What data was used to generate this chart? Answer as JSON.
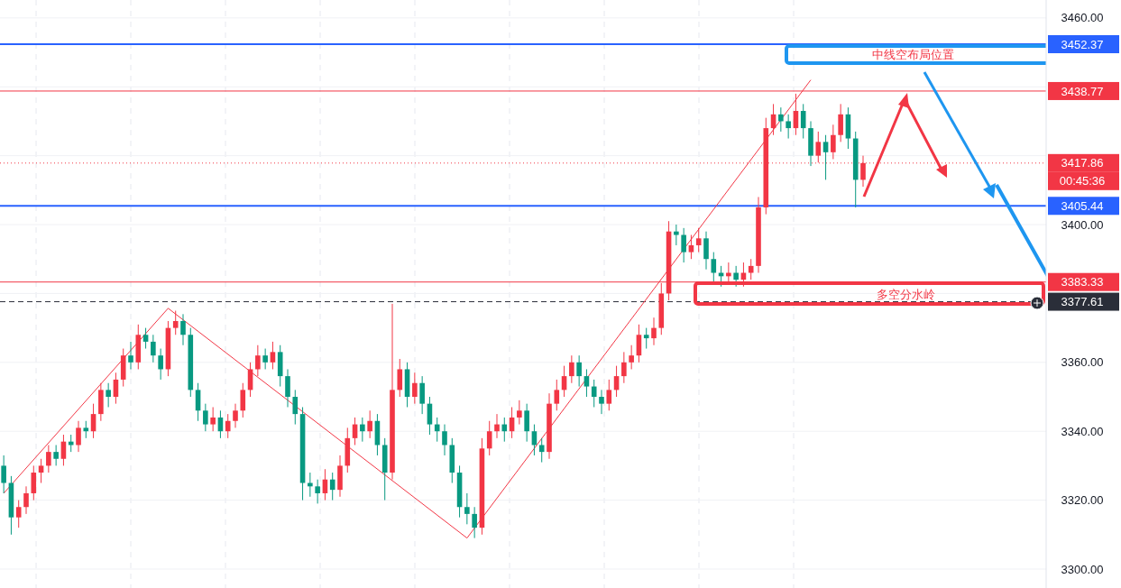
{
  "chart_data": {
    "type": "candlestick",
    "categories": [
      null,
      null,
      null,
      null,
      null,
      null,
      null,
      null,
      null,
      null,
      null,
      null,
      null,
      null,
      null,
      null,
      null,
      null,
      null,
      null,
      null,
      null,
      null,
      null,
      null,
      null,
      null,
      null,
      null,
      null,
      null,
      null,
      null,
      null,
      null,
      null,
      null,
      null,
      null,
      null,
      null,
      null,
      null,
      null,
      null,
      null,
      null,
      null,
      null,
      null,
      null,
      null,
      null,
      null,
      null,
      null,
      null,
      null,
      null,
      null,
      null,
      null,
      null,
      null,
      null,
      null,
      null,
      null,
      null,
      null,
      null,
      null,
      null,
      null,
      null,
      null,
      null,
      null,
      null,
      null,
      null,
      null,
      null,
      null,
      null,
      null,
      null,
      null,
      null,
      null,
      null,
      null,
      null,
      null,
      null,
      null,
      null,
      null,
      null,
      null,
      null,
      null,
      null,
      null,
      null,
      null,
      null,
      null,
      null,
      null,
      null,
      null,
      null,
      null,
      null,
      null,
      null,
      null,
      null,
      null,
      null,
      null,
      null,
      null,
      null,
      null,
      null,
      null,
      null,
      null,
      null,
      null,
      null,
      null,
      null,
      null,
      null,
      null,
      null,
      null
    ],
    "ohlc": [
      [
        3330,
        3333,
        3322,
        3325
      ],
      [
        3325,
        3327,
        3310,
        3315
      ],
      [
        3315,
        3320,
        3312,
        3318
      ],
      [
        3318,
        3324,
        3316,
        3322
      ],
      [
        3322,
        3330,
        3320,
        3328
      ],
      [
        3328,
        3332,
        3325,
        3330
      ],
      [
        3330,
        3336,
        3328,
        3334
      ],
      [
        3334,
        3336,
        3330,
        3332
      ],
      [
        3332,
        3339,
        3330,
        3337
      ],
      [
        3337,
        3339,
        3334,
        3336
      ],
      [
        3336,
        3343,
        3334,
        3341
      ],
      [
        3341,
        3343,
        3338,
        3340
      ],
      [
        3340,
        3348,
        3338,
        3345
      ],
      [
        3345,
        3354,
        3343,
        3352
      ],
      [
        3352,
        3354,
        3347,
        3350
      ],
      [
        3350,
        3357,
        3348,
        3355
      ],
      [
        3355,
        3364,
        3353,
        3362
      ],
      [
        3362,
        3366,
        3358,
        3360
      ],
      [
        3360,
        3371,
        3358,
        3368
      ],
      [
        3368,
        3370,
        3364,
        3366
      ],
      [
        3366,
        3368,
        3360,
        3362
      ],
      [
        3362,
        3364,
        3355,
        3358
      ],
      [
        3358,
        3372,
        3356,
        3370
      ],
      [
        3370,
        3375,
        3368,
        3372
      ],
      [
        3372,
        3374,
        3365,
        3368
      ],
      [
        3368,
        3370,
        3350,
        3352
      ],
      [
        3352,
        3354,
        3343,
        3346
      ],
      [
        3346,
        3348,
        3340,
        3342
      ],
      [
        3342,
        3347,
        3340,
        3344
      ],
      [
        3344,
        3346,
        3338,
        3340
      ],
      [
        3340,
        3345,
        3338,
        3343
      ],
      [
        3343,
        3348,
        3341,
        3346
      ],
      [
        3346,
        3354,
        3344,
        3352
      ],
      [
        3352,
        3360,
        3350,
        3358
      ],
      [
        3358,
        3365,
        3356,
        3362
      ],
      [
        3362,
        3364,
        3358,
        3360
      ],
      [
        3360,
        3366,
        3358,
        3363
      ],
      [
        3363,
        3365,
        3353,
        3356
      ],
      [
        3356,
        3358,
        3347,
        3350
      ],
      [
        3350,
        3352,
        3342,
        3345
      ],
      [
        3345,
        3347,
        3320,
        3325
      ],
      [
        3325,
        3328,
        3321,
        3324
      ],
      [
        3324,
        3326,
        3319,
        3322
      ],
      [
        3322,
        3329,
        3320,
        3326
      ],
      [
        3326,
        3328,
        3320,
        3323
      ],
      [
        3323,
        3333,
        3321,
        3330
      ],
      [
        3330,
        3341,
        3328,
        3338
      ],
      [
        3338,
        3344,
        3336,
        3342
      ],
      [
        3342,
        3344,
        3337,
        3340
      ],
      [
        3340,
        3346,
        3338,
        3343
      ],
      [
        3343,
        3345,
        3333,
        3336
      ],
      [
        3336,
        3338,
        3320,
        3328
      ],
      [
        3328,
        3377,
        3326,
        3352
      ],
      [
        3352,
        3361,
        3350,
        3358
      ],
      [
        3358,
        3360,
        3347,
        3350
      ],
      [
        3350,
        3357,
        3348,
        3354
      ],
      [
        3354,
        3356,
        3345,
        3348
      ],
      [
        3348,
        3350,
        3339,
        3342
      ],
      [
        3342,
        3344,
        3337,
        3340
      ],
      [
        3340,
        3342,
        3333,
        3336
      ],
      [
        3336,
        3338,
        3325,
        3328
      ],
      [
        3328,
        3330,
        3315,
        3318
      ],
      [
        3318,
        3322,
        3313,
        3316
      ],
      [
        3316,
        3318,
        3309,
        3312
      ],
      [
        3312,
        3338,
        3310,
        3335
      ],
      [
        3335,
        3343,
        3333,
        3340
      ],
      [
        3340,
        3345,
        3338,
        3342
      ],
      [
        3342,
        3344,
        3337,
        3340
      ],
      [
        3340,
        3347,
        3338,
        3344
      ],
      [
        3344,
        3349,
        3342,
        3346
      ],
      [
        3346,
        3348,
        3337,
        3340
      ],
      [
        3340,
        3342,
        3333,
        3336
      ],
      [
        3336,
        3338,
        3331,
        3334
      ],
      [
        3334,
        3351,
        3332,
        3348
      ],
      [
        3348,
        3355,
        3346,
        3352
      ],
      [
        3352,
        3359,
        3350,
        3356
      ],
      [
        3356,
        3362,
        3354,
        3360
      ],
      [
        3360,
        3362,
        3353,
        3356
      ],
      [
        3356,
        3358,
        3350,
        3353
      ],
      [
        3353,
        3355,
        3347,
        3350
      ],
      [
        3350,
        3352,
        3345,
        3348
      ],
      [
        3348,
        3355,
        3346,
        3352
      ],
      [
        3352,
        3359,
        3350,
        3356
      ],
      [
        3356,
        3363,
        3354,
        3360
      ],
      [
        3360,
        3365,
        3358,
        3362
      ],
      [
        3362,
        3371,
        3360,
        3368
      ],
      [
        3368,
        3370,
        3364,
        3367
      ],
      [
        3367,
        3373,
        3365,
        3370
      ],
      [
        3370,
        3383,
        3368,
        3380
      ],
      [
        3380,
        3401,
        3378,
        3398
      ],
      [
        3398,
        3400,
        3394,
        3397
      ],
      [
        3397,
        3399,
        3389,
        3392
      ],
      [
        3392,
        3397,
        3390,
        3394
      ],
      [
        3394,
        3399,
        3392,
        3396
      ],
      [
        3396,
        3398,
        3387,
        3390
      ],
      [
        3390,
        3392,
        3383,
        3386
      ],
      [
        3386,
        3388,
        3382,
        3385
      ],
      [
        3385,
        3389,
        3383,
        3386
      ],
      [
        3386,
        3388,
        3382,
        3384
      ],
      [
        3384,
        3389,
        3382,
        3386
      ],
      [
        3386,
        3390,
        3384,
        3388
      ],
      [
        3388,
        3408,
        3386,
        3405
      ],
      [
        3405,
        3431,
        3403,
        3428
      ],
      [
        3428,
        3435,
        3426,
        3432
      ],
      [
        3432,
        3434,
        3427,
        3430
      ],
      [
        3430,
        3432,
        3425,
        3428
      ],
      [
        3428,
        3438,
        3426,
        3433
      ],
      [
        3433,
        3435,
        3425,
        3428
      ],
      [
        3428,
        3430,
        3417,
        3420
      ],
      [
        3420,
        3427,
        3418,
        3424
      ],
      [
        3424,
        3426,
        3413,
        3421
      ],
      [
        3421,
        3429,
        3419,
        3426
      ],
      [
        3426,
        3435,
        3424,
        3432
      ],
      [
        3432,
        3434,
        3422,
        3425
      ],
      [
        3425,
        3427,
        3405,
        3413
      ],
      [
        3413,
        3420,
        3411,
        3417.86
      ],
      null,
      null,
      null,
      null,
      null,
      null,
      null,
      null,
      null,
      null,
      null,
      null,
      null,
      null,
      null,
      null,
      null,
      null,
      null,
      null,
      null,
      null,
      null,
      null
    ],
    "colors": [
      "#089981",
      "#089981",
      "#f23645",
      "#f23645",
      "#f23645",
      "#f23645",
      "#f23645",
      "#089981",
      "#f23645",
      "#089981",
      "#f23645",
      "#089981",
      "#f23645",
      "#f23645",
      "#089981",
      "#f23645",
      "#f23645",
      "#089981",
      "#f23645",
      "#089981",
      "#089981",
      "#089981",
      "#f23645",
      "#f23645",
      "#089981",
      "#089981",
      "#089981",
      "#089981",
      "#f23645",
      "#089981",
      "#f23645",
      "#f23645",
      "#f23645",
      "#f23645",
      "#f23645",
      "#089981",
      "#f23645",
      "#089981",
      "#089981",
      "#089981",
      "#089981",
      "#089981",
      "#089981",
      "#f23645",
      "#089981",
      "#f23645",
      "#f23645",
      "#f23645",
      "#089981",
      "#f23645",
      "#089981",
      "#089981",
      "#f23645",
      "#f23645",
      "#089981",
      "#f23645",
      "#089981",
      "#089981",
      "#089981",
      "#089981",
      "#089981",
      "#089981",
      "#089981",
      "#089981",
      "#f23645",
      "#f23645",
      "#f23645",
      "#089981",
      "#f23645",
      "#f23645",
      "#089981",
      "#089981",
      "#089981",
      "#f23645",
      "#f23645",
      "#f23645",
      "#f23645",
      "#089981",
      "#089981",
      "#089981",
      "#089981",
      "#f23645",
      "#f23645",
      "#f23645",
      "#f23645",
      "#f23645",
      "#089981",
      "#f23645",
      "#f23645",
      "#f23645",
      "#089981",
      "#089981",
      "#f23645",
      "#f23645",
      "#089981",
      "#089981",
      "#089981",
      "#f23645",
      "#089981",
      "#f23645",
      "#f23645",
      "#f23645",
      "#f23645",
      "#f23645",
      "#089981",
      "#089981",
      "#f23645",
      "#089981",
      "#089981",
      "#f23645",
      "#089981",
      "#f23645",
      "#f23645",
      "#089981",
      "#089981",
      "#f23645",
      null,
      null,
      null,
      null,
      null,
      null,
      null,
      null,
      null,
      null,
      null,
      null,
      null,
      null,
      null,
      null,
      null,
      null,
      null,
      null,
      null,
      null,
      null,
      null
    ],
    "series": [
      {
        "type": "line",
        "values": [
          3322,
          null,
          null,
          null,
          null,
          null,
          null,
          null,
          null,
          null,
          null,
          null,
          null,
          null,
          null,
          null,
          null,
          null,
          null,
          null,
          null,
          null,
          3375.7,
          null,
          null,
          null,
          null,
          null,
          null,
          null,
          null,
          null,
          null,
          null,
          null,
          null,
          null,
          null,
          null,
          null,
          null,
          null,
          null,
          null,
          null,
          null,
          null,
          null,
          null,
          null,
          null,
          null,
          null,
          null,
          null,
          null,
          null,
          null,
          null,
          null,
          null,
          null,
          3309,
          null,
          null,
          null,
          null,
          null,
          null,
          null,
          null,
          null,
          null,
          null,
          null,
          null,
          null,
          null,
          null,
          null,
          null,
          null,
          null,
          null,
          null,
          null,
          null,
          null,
          null,
          null,
          null,
          null,
          null,
          null,
          null,
          null,
          null,
          null,
          null,
          null,
          null,
          null,
          null,
          null,
          null,
          null,
          null,
          null,
          3442,
          null,
          null,
          null,
          null,
          null,
          null,
          null,
          null,
          null,
          null,
          null,
          null,
          null,
          null,
          null,
          null,
          null,
          null,
          null,
          null,
          null,
          null,
          null,
          null,
          null,
          null,
          null,
          null,
          null,
          null,
          null
        ],
        "color": "#f23645"
      }
    ],
    "ylim": [
      3294.5,
      3465.2
    ],
    "yticks": [
      {
        "value": 3300,
        "label": "3300.00"
      },
      {
        "value": 3320,
        "label": "3320.00"
      },
      {
        "value": 3340,
        "label": "3340.00"
      },
      {
        "value": 3360,
        "label": "3360.00"
      },
      {
        "value": 3380,
        "label": null
      },
      {
        "value": 3400,
        "label": "3400.00"
      },
      {
        "value": 3420,
        "label": null
      },
      {
        "value": 3440,
        "label": null
      },
      {
        "value": 3460,
        "label": "3460.00"
      }
    ],
    "tick_labels": "y",
    "grid": true,
    "ref_lines": [
      {
        "axis": "y",
        "value": 3452.37,
        "label": "3452.37",
        "color": "#2962ff",
        "line_style": "solid"
      },
      {
        "axis": "y",
        "value": 3438.77,
        "label": "3438.77",
        "color": "#f23645",
        "line_style": "solid"
      },
      {
        "axis": "y",
        "value": 3417.86,
        "label": "3417.86",
        "color": "#f23645",
        "line_style": "dotted"
      },
      {
        "axis": "y",
        "value": 3405.44,
        "label": "3405.44",
        "color": "#2962ff",
        "line_style": "solid"
      },
      {
        "axis": "y",
        "value": 3383.33,
        "label": "3383.33",
        "color": "#f23645",
        "line_style": "solid"
      },
      {
        "axis": "y",
        "value": 3377.61,
        "label": "3377.61",
        "color": "#2a2e39",
        "line_style": "dashed"
      }
    ],
    "annotations": [
      "中线空布局位置",
      "多空分水岭",
      "00:45:36"
    ]
  }
}
